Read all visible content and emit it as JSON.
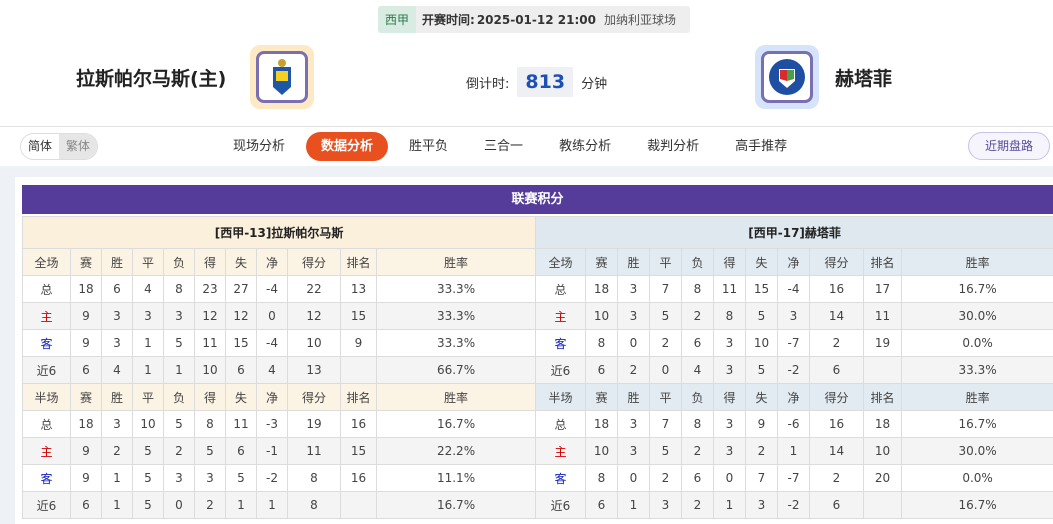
{
  "match": {
    "league": "西甲",
    "time_label": "开赛时间:",
    "time": "2025-01-12 21:00",
    "venue": "加纳利亚球场",
    "home": "拉斯帕尔马斯(主)",
    "away": "赫塔菲",
    "countdown_label": "倒计时:",
    "countdown": "813",
    "countdown_unit": "分钟"
  },
  "nav": {
    "lang": [
      "简体",
      "繁体"
    ],
    "tabs": [
      "现场分析",
      "数据分析",
      "胜平负",
      "三合一",
      "教练分析",
      "裁判分析",
      "高手推荐"
    ],
    "active": 1,
    "recent": "近期盘路"
  },
  "standings": {
    "title": "联赛积分",
    "columns_full": [
      "全场",
      "赛",
      "胜",
      "平",
      "负",
      "得",
      "失",
      "净",
      "得分",
      "排名",
      "胜率"
    ],
    "columns_half": [
      "半场",
      "赛",
      "胜",
      "平",
      "负",
      "得",
      "失",
      "净",
      "得分",
      "排名",
      "胜率"
    ],
    "home": {
      "title": "[西甲-13]拉斯帕尔马斯",
      "full": [
        [
          "总",
          "18",
          "6",
          "4",
          "8",
          "23",
          "27",
          "-4",
          "22",
          "13",
          "33.3%"
        ],
        [
          "主",
          "9",
          "3",
          "3",
          "3",
          "12",
          "12",
          "0",
          "12",
          "15",
          "33.3%"
        ],
        [
          "客",
          "9",
          "3",
          "1",
          "5",
          "11",
          "15",
          "-4",
          "10",
          "9",
          "33.3%"
        ],
        [
          "近6",
          "6",
          "4",
          "1",
          "1",
          "10",
          "6",
          "4",
          "13",
          "",
          "66.7%"
        ]
      ],
      "half": [
        [
          "总",
          "18",
          "3",
          "10",
          "5",
          "8",
          "11",
          "-3",
          "19",
          "16",
          "16.7%"
        ],
        [
          "主",
          "9",
          "2",
          "5",
          "2",
          "5",
          "6",
          "-1",
          "11",
          "15",
          "22.2%"
        ],
        [
          "客",
          "9",
          "1",
          "5",
          "3",
          "3",
          "5",
          "-2",
          "8",
          "16",
          "11.1%"
        ],
        [
          "近6",
          "6",
          "1",
          "5",
          "0",
          "2",
          "1",
          "1",
          "8",
          "",
          "16.7%"
        ]
      ]
    },
    "away": {
      "title": "[西甲-17]赫塔菲",
      "full": [
        [
          "总",
          "18",
          "3",
          "7",
          "8",
          "11",
          "15",
          "-4",
          "16",
          "17",
          "16.7%"
        ],
        [
          "主",
          "10",
          "3",
          "5",
          "2",
          "8",
          "5",
          "3",
          "14",
          "11",
          "30.0%"
        ],
        [
          "客",
          "8",
          "0",
          "2",
          "6",
          "3",
          "10",
          "-7",
          "2",
          "19",
          "0.0%"
        ],
        [
          "近6",
          "6",
          "2",
          "0",
          "4",
          "3",
          "5",
          "-2",
          "6",
          "",
          "33.3%"
        ]
      ],
      "half": [
        [
          "总",
          "18",
          "3",
          "7",
          "8",
          "3",
          "9",
          "-6",
          "16",
          "18",
          "16.7%"
        ],
        [
          "主",
          "10",
          "3",
          "5",
          "2",
          "3",
          "2",
          "1",
          "14",
          "10",
          "30.0%"
        ],
        [
          "客",
          "8",
          "0",
          "2",
          "6",
          "0",
          "7",
          "-7",
          "2",
          "20",
          "0.0%"
        ],
        [
          "近6",
          "6",
          "1",
          "3",
          "2",
          "1",
          "3",
          "-2",
          "6",
          "",
          "16.7%"
        ]
      ]
    }
  }
}
